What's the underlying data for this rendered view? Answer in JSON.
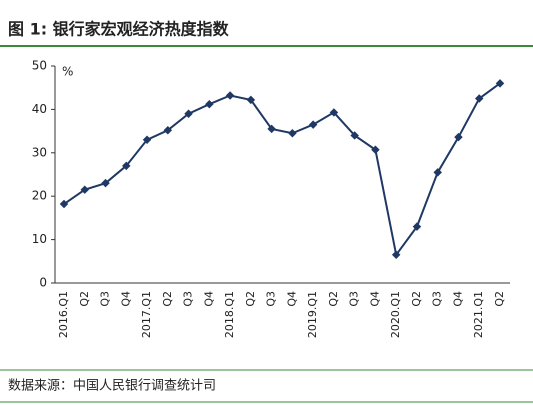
{
  "chart_data": {
    "type": "line",
    "title": "图 1: 银行家宏观经济热度指数",
    "unit": "%",
    "source": "数据来源：中国人民银行调查统计司",
    "categories": [
      "2016.Q1",
      "Q2",
      "Q3",
      "Q4",
      "2017.Q1",
      "Q2",
      "Q3",
      "Q4",
      "2018.Q1",
      "Q2",
      "Q3",
      "Q4",
      "2019.Q1",
      "Q2",
      "Q3",
      "Q4",
      "2020.Q1",
      "Q2",
      "Q3",
      "Q4",
      "2021.Q1",
      "Q2"
    ],
    "series": [
      {
        "name": "银行家宏观经济热度指数",
        "color": "#1f3864",
        "values": [
          18.2,
          21.5,
          23,
          27,
          33,
          35.2,
          39,
          41.2,
          43.2,
          42.2,
          35.5,
          34.5,
          36.5,
          39.3,
          34,
          30.7,
          6.5,
          13,
          25.5,
          33.6,
          42.5,
          46
        ]
      }
    ],
    "ylim": [
      0,
      50
    ],
    "yticks": [
      0,
      10,
      20,
      30,
      40,
      50
    ],
    "grid": false
  }
}
